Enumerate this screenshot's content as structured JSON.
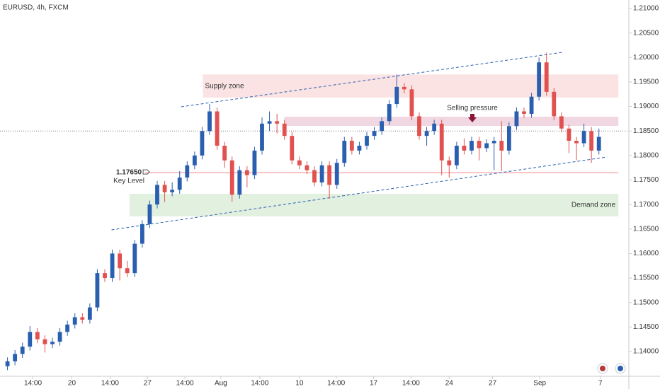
{
  "chart_data": {
    "type": "candlestick",
    "title": "EURUSD, 4h, FXCM",
    "xlim": [
      -1,
      83
    ],
    "ylim": [
      1.13495,
      1.21173
    ],
    "yticks": [
      {
        "value": 1.14,
        "label": "1.14000"
      },
      {
        "value": 1.145,
        "label": "1.14500"
      },
      {
        "value": 1.15,
        "label": "1.15000"
      },
      {
        "value": 1.155,
        "label": "1.15500"
      },
      {
        "value": 1.16,
        "label": "1.16000"
      },
      {
        "value": 1.165,
        "label": "1.16500"
      },
      {
        "value": 1.17,
        "label": "1.17000"
      },
      {
        "value": 1.175,
        "label": "1.17500"
      },
      {
        "value": 1.18,
        "label": "1.18000"
      },
      {
        "value": 1.185,
        "label": "1.18500"
      },
      {
        "value": 1.19,
        "label": "1.19000"
      },
      {
        "value": 1.195,
        "label": "1.19500"
      },
      {
        "value": 1.2,
        "label": "1.20000"
      },
      {
        "value": 1.205,
        "label": "1.20500"
      },
      {
        "value": 1.21,
        "label": "1.21000"
      }
    ],
    "xticks": [
      {
        "value": 3.4,
        "label": "14:00"
      },
      {
        "value": 8.6,
        "label": "20"
      },
      {
        "value": 13.7,
        "label": "14:00"
      },
      {
        "value": 18.7,
        "label": "27"
      },
      {
        "value": 23.7,
        "label": "14:00"
      },
      {
        "value": 28.5,
        "label": "Aug"
      },
      {
        "value": 33.7,
        "label": "14:00"
      },
      {
        "value": 39,
        "label": "10"
      },
      {
        "value": 43.9,
        "label": "14:00"
      },
      {
        "value": 48.9,
        "label": "17"
      },
      {
        "value": 53.9,
        "label": "14:00"
      },
      {
        "value": 59,
        "label": "24"
      },
      {
        "value": 64.8,
        "label": "27"
      },
      {
        "value": 71.1,
        "label": "Sep"
      },
      {
        "value": 79.2,
        "label": "7"
      }
    ],
    "up_color": "#2a5fb0",
    "down_color": "#e0514f",
    "open": [
      1.137,
      1.138,
      1.1395,
      1.141,
      1.144,
      1.1425,
      1.1415,
      1.142,
      1.144,
      1.1455,
      1.147,
      1.1465,
      1.149,
      1.156,
      1.155,
      1.16,
      1.157,
      1.156,
      1.162,
      1.166,
      1.17,
      1.174,
      1.1725,
      1.173,
      1.1755,
      1.178,
      1.18,
      1.185,
      1.189,
      1.182,
      1.179,
      1.172,
      1.177,
      1.176,
      1.181,
      1.1865,
      1.187,
      1.1865,
      1.184,
      1.179,
      1.178,
      1.177,
      1.1745,
      1.178,
      1.174,
      1.1785,
      1.183,
      1.181,
      1.182,
      1.184,
      1.185,
      1.187,
      1.1905,
      1.194,
      1.1935,
      1.188,
      1.184,
      1.185,
      1.1865,
      1.179,
      1.178,
      1.182,
      1.181,
      1.183,
      1.1815,
      1.1825,
      1.183,
      1.181,
      1.186,
      1.189,
      1.1885,
      1.192,
      1.199,
      1.193,
      1.188,
      1.1855,
      1.183,
      1.1825,
      1.185,
      1.181
    ],
    "high": [
      1.1388,
      1.1403,
      1.1418,
      1.1452,
      1.1448,
      1.1433,
      1.1428,
      1.1448,
      1.1463,
      1.1478,
      1.1478,
      1.1498,
      1.1568,
      1.1568,
      1.1608,
      1.1608,
      1.1585,
      1.1628,
      1.1668,
      1.1708,
      1.1748,
      1.1748,
      1.1745,
      1.1768,
      1.1788,
      1.1808,
      1.1858,
      1.1905,
      1.1898,
      1.1828,
      1.1798,
      1.1778,
      1.1778,
      1.1818,
      1.1878,
      1.189,
      1.1885,
      1.1873,
      1.1848,
      1.1798,
      1.1788,
      1.1778,
      1.1788,
      1.1788,
      1.1793,
      1.1838,
      1.1838,
      1.1828,
      1.1848,
      1.1858,
      1.1878,
      1.1913,
      1.1965,
      1.1948,
      1.1943,
      1.1888,
      1.1858,
      1.1873,
      1.1873,
      1.1798,
      1.1828,
      1.1835,
      1.1838,
      1.1838,
      1.1833,
      1.1838,
      1.187,
      1.1868,
      1.1898,
      1.1898,
      1.1928,
      1.2,
      1.201,
      1.1938,
      1.1888,
      1.1863,
      1.1838,
      1.1865,
      1.1858,
      1.1855
    ],
    "low": [
      1.1362,
      1.1372,
      1.1387,
      1.1402,
      1.1417,
      1.1398,
      1.1407,
      1.1412,
      1.1432,
      1.1447,
      1.1457,
      1.1457,
      1.1482,
      1.1542,
      1.1542,
      1.1545,
      1.1552,
      1.1552,
      1.1612,
      1.1652,
      1.1692,
      1.1705,
      1.1717,
      1.1722,
      1.1747,
      1.1772,
      1.1792,
      1.1842,
      1.1812,
      1.1775,
      1.1705,
      1.1712,
      1.1735,
      1.1752,
      1.1802,
      1.185,
      1.1845,
      1.1832,
      1.1782,
      1.1772,
      1.1762,
      1.1737,
      1.1737,
      1.1712,
      1.1732,
      1.1777,
      1.1802,
      1.1802,
      1.1812,
      1.1832,
      1.1842,
      1.1862,
      1.1897,
      1.1927,
      1.1872,
      1.1832,
      1.182,
      1.1842,
      1.176,
      1.1755,
      1.1772,
      1.1802,
      1.1802,
      1.179,
      1.1807,
      1.177,
      1.1768,
      1.1802,
      1.1852,
      1.1877,
      1.1877,
      1.1912,
      1.1922,
      1.1872,
      1.1847,
      1.1805,
      1.179,
      1.1817,
      1.1785,
      1.1802
    ],
    "close": [
      1.138,
      1.1395,
      1.141,
      1.144,
      1.1425,
      1.1415,
      1.142,
      1.144,
      1.1455,
      1.147,
      1.1465,
      1.149,
      1.156,
      1.155,
      1.16,
      1.157,
      1.156,
      1.162,
      1.166,
      1.17,
      1.174,
      1.1725,
      1.173,
      1.1755,
      1.178,
      1.18,
      1.185,
      1.189,
      1.182,
      1.179,
      1.172,
      1.177,
      1.176,
      1.181,
      1.1865,
      1.187,
      1.1865,
      1.184,
      1.179,
      1.178,
      1.177,
      1.1745,
      1.178,
      1.174,
      1.1785,
      1.183,
      1.181,
      1.182,
      1.184,
      1.185,
      1.187,
      1.1905,
      1.194,
      1.1935,
      1.188,
      1.184,
      1.185,
      1.1865,
      1.179,
      1.178,
      1.182,
      1.181,
      1.183,
      1.1815,
      1.1825,
      1.183,
      1.181,
      1.186,
      1.189,
      1.1885,
      1.192,
      1.199,
      1.193,
      1.188,
      1.1855,
      1.183,
      1.1825,
      1.185,
      1.181,
      1.1838
    ],
    "price_line": 1.185,
    "zones": [
      {
        "label": "Supply zone",
        "ylim": [
          1.19182,
          1.19653
        ],
        "xlim": [
          26.1,
          81.6
        ],
        "color": "#fbe3e3",
        "text_color": "#d0393b",
        "anchor": "start"
      },
      {
        "label": "Selling pressure",
        "ylim": [
          1.18604,
          1.18792
        ],
        "xlim": [
          37.0,
          81.6
        ],
        "color": "#f1d7e2",
        "text_color": "#8a1538",
        "anchor": "middle"
      },
      {
        "label": "Demand zone",
        "ylim": [
          1.16757,
          1.17219
        ],
        "xlim": [
          16.3,
          81.6
        ],
        "color": "#e2f1df",
        "text_color": "#1f5fa8",
        "anchor": "end"
      }
    ],
    "key_level": {
      "value": 1.1765,
      "label": "1.17650",
      "text": "Key Level",
      "xlim": [
        18.4,
        81.6
      ],
      "color": "#f08a8a"
    },
    "trendlines": [
      {
        "x": [
          23.2,
          74.1
        ],
        "y": [
          1.18994,
          1.20105
        ]
      },
      {
        "x": [
          13.9,
          80.1
        ],
        "y": [
          1.16483,
          1.1797
        ]
      }
    ],
    "trend_color": "#2a5fb0"
  }
}
